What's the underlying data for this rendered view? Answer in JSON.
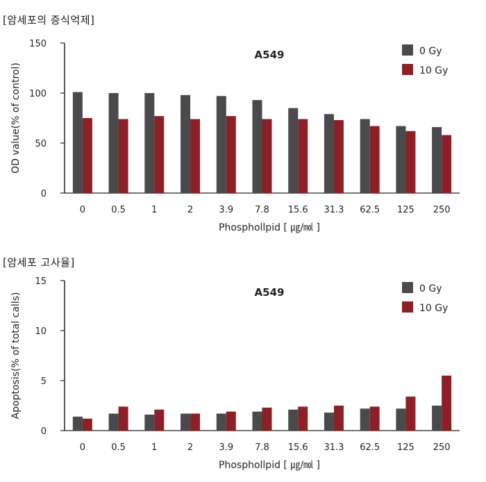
{
  "sections": {
    "top_label": "[암세포의 증식억제]",
    "bottom_label": "[암세포 고사율]"
  },
  "colors": {
    "series_0gy": "#4a4a4c",
    "series_10gy": "#8b2127",
    "axis": "#222222"
  },
  "chart_data": [
    {
      "type": "bar",
      "title": "A549",
      "xlabel": "Phosphollpid [ ㎍/㏖ ]",
      "ylabel": "OD value(% of control)",
      "ylim": [
        0,
        150
      ],
      "yticks": [
        0,
        50,
        100,
        150
      ],
      "categories": [
        "0",
        "0.5",
        "1",
        "2",
        "3.9",
        "7.8",
        "15.6",
        "31.3",
        "62.5",
        "125",
        "250"
      ],
      "series": [
        {
          "name": "0 Gy",
          "values": [
            101,
            100,
            100,
            98,
            97,
            93,
            85,
            79,
            74,
            67,
            66
          ]
        },
        {
          "name": "10 Gy",
          "values": [
            75,
            74,
            77,
            74,
            77,
            74,
            74,
            73,
            67,
            62,
            58
          ]
        }
      ],
      "legend_position": "top-right"
    },
    {
      "type": "bar",
      "title": "A549",
      "xlabel": "Phosphollpid [ ㎍/㏖ ]",
      "ylabel": "Apoptosis(% of total calls)",
      "ylim": [
        0,
        15
      ],
      "yticks": [
        0,
        5,
        10,
        15
      ],
      "categories": [
        "0",
        "0.5",
        "1",
        "2",
        "3.9",
        "7.8",
        "15.6",
        "31.3",
        "62.5",
        "125",
        "250"
      ],
      "series": [
        {
          "name": "0 Gy",
          "values": [
            1.4,
            1.7,
            1.6,
            1.7,
            1.7,
            1.9,
            2.1,
            1.8,
            2.2,
            2.2,
            2.5
          ]
        },
        {
          "name": "10 Gy",
          "values": [
            1.2,
            2.4,
            2.1,
            1.7,
            1.9,
            2.3,
            2.4,
            2.5,
            2.4,
            3.4,
            5.5
          ]
        }
      ],
      "legend_position": "top-right"
    }
  ]
}
